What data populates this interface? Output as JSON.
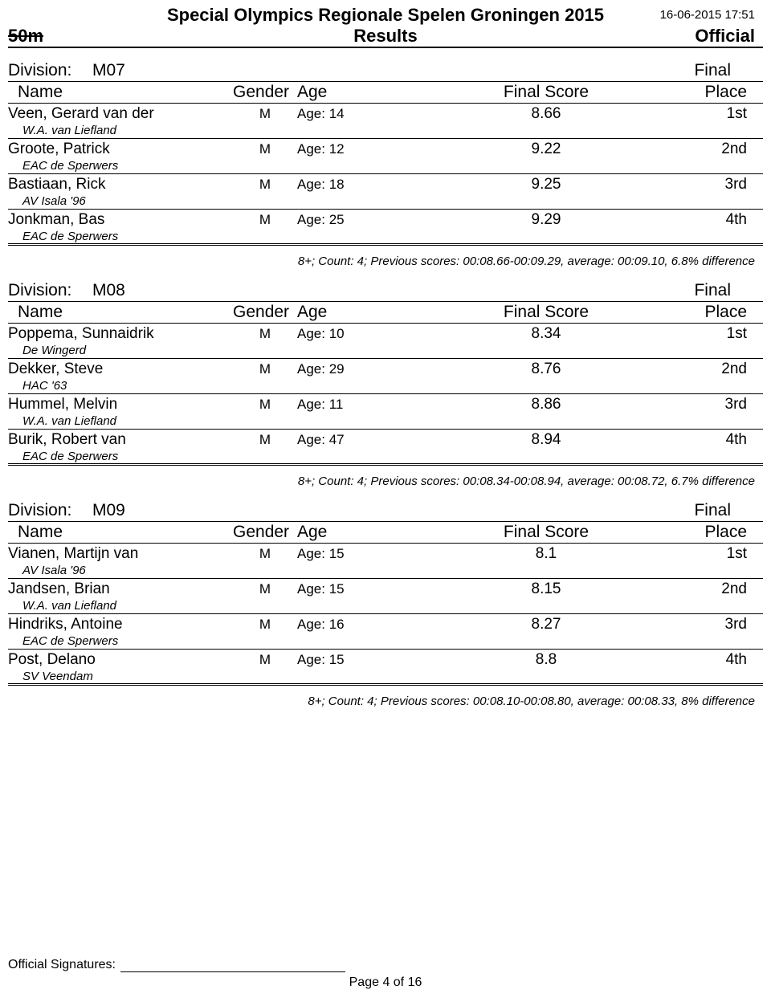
{
  "header": {
    "title": "Special Olympics Regionale Spelen Groningen 2015",
    "timestamp": "16-06-2015 17:51",
    "event": "50m",
    "results_label": "Results",
    "official_label": "Official"
  },
  "columns": {
    "name": "Name",
    "gender": "Gender",
    "age": "Age",
    "score": "Final Score",
    "place": "Place"
  },
  "division_label": "Division:",
  "final_label": "Final",
  "divisions": [
    {
      "code": "M07",
      "stats": "8+; Count: 4; Previous scores: 00:08.66-00:09.29, average: 00:09.10, 6.8% difference",
      "rows": [
        {
          "name": "Veen, Gerard van der",
          "club": "W.A. van Liefland",
          "gender": "M",
          "age": "Age: 14",
          "score": "8.66",
          "place": "1st"
        },
        {
          "name": "Groote, Patrick",
          "club": "EAC de Sperwers",
          "gender": "M",
          "age": "Age: 12",
          "score": "9.22",
          "place": "2nd"
        },
        {
          "name": "Bastiaan, Rick",
          "club": "AV Isala '96",
          "gender": "M",
          "age": "Age: 18",
          "score": "9.25",
          "place": "3rd"
        },
        {
          "name": "Jonkman, Bas",
          "club": "EAC de Sperwers",
          "gender": "M",
          "age": "Age: 25",
          "score": "9.29",
          "place": "4th"
        }
      ]
    },
    {
      "code": "M08",
      "stats": "8+; Count: 4; Previous scores: 00:08.34-00:08.94, average: 00:08.72, 6.7% difference",
      "rows": [
        {
          "name": "Poppema, Sunnaidrik",
          "club": "De Wingerd",
          "gender": "M",
          "age": "Age: 10",
          "score": "8.34",
          "place": "1st"
        },
        {
          "name": "Dekker, Steve",
          "club": "HAC '63",
          "gender": "M",
          "age": "Age: 29",
          "score": "8.76",
          "place": "2nd"
        },
        {
          "name": "Hummel, Melvin",
          "club": "W.A. van Liefland",
          "gender": "M",
          "age": "Age: 11",
          "score": "8.86",
          "place": "3rd"
        },
        {
          "name": "Burik, Robert van",
          "club": "EAC de Sperwers",
          "gender": "M",
          "age": "Age: 47",
          "score": "8.94",
          "place": "4th"
        }
      ]
    },
    {
      "code": "M09",
      "stats": "8+; Count: 4; Previous scores: 00:08.10-00:08.80, average: 00:08.33, 8% difference",
      "rows": [
        {
          "name": "Vianen, Martijn van",
          "club": "AV Isala '96",
          "gender": "M",
          "age": "Age: 15",
          "score": "8.1",
          "place": "1st"
        },
        {
          "name": "Jandsen, Brian",
          "club": "W.A. van Liefland",
          "gender": "M",
          "age": "Age: 15",
          "score": "8.15",
          "place": "2nd"
        },
        {
          "name": "Hindriks, Antoine",
          "club": "EAC de Sperwers",
          "gender": "M",
          "age": "Age: 16",
          "score": "8.27",
          "place": "3rd"
        },
        {
          "name": "Post, Delano",
          "club": "SV Veendam",
          "gender": "M",
          "age": "Age: 15",
          "score": "8.8",
          "place": "4th"
        }
      ]
    }
  ],
  "footer": {
    "signatures": "Official Signatures:",
    "page": "Page 4 of 16"
  }
}
